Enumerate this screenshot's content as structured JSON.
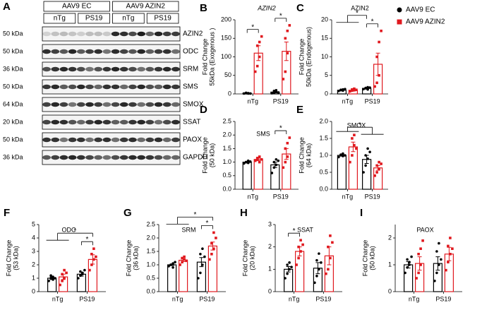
{
  "blot": {
    "letter": "A",
    "groups": [
      {
        "label": "AAV9 EC",
        "subgroups": [
          "nTg",
          "PS19"
        ]
      },
      {
        "label": "AAV9 AZIN2",
        "subgroups": [
          "nTg",
          "PS19"
        ]
      }
    ],
    "rows": [
      {
        "kda": "50 kDa",
        "protein": "AZIN2"
      },
      {
        "kda": "50 kDa",
        "protein": "ODC"
      },
      {
        "kda": "36 kDa",
        "protein": "SRM"
      },
      {
        "kda": "50 kDa",
        "protein": "SMS"
      },
      {
        "kda": "64 kDa",
        "protein": "SMOX"
      },
      {
        "kda": "20 kDa",
        "protein": "SSAT"
      },
      {
        "kda": "50 kDa",
        "protein": "PAOX"
      },
      {
        "kda": "36 kDa",
        "protein": "GAPDH"
      }
    ]
  },
  "legend": [
    {
      "name": "AAV9 EC",
      "color": "#000000",
      "marker": "circle"
    },
    {
      "name": "AAV9 AZIN2",
      "color": "#e0191f",
      "marker": "square"
    }
  ],
  "chart_data": [
    {
      "type": "bar",
      "letter": "B",
      "title": "AZIN2",
      "title_style": "italic",
      "ylabel": [
        "Fold Change",
        "55kDa (Exogenous )"
      ],
      "categories": [
        "nTg",
        "PS19"
      ],
      "ylim": [
        0,
        200
      ],
      "yticks": [
        0,
        50,
        100,
        150,
        200
      ],
      "series": [
        {
          "color": "#000000",
          "values": [
            2,
            5
          ],
          "errors": [
            1,
            2
          ],
          "points": [
            [
              1,
              2,
              1,
              3,
              2,
              1
            ],
            [
              2,
              8,
              5,
              3,
              10,
              4
            ]
          ]
        },
        {
          "color": "#e0191f",
          "values": [
            110,
            115
          ],
          "errors": [
            20,
            25
          ],
          "points": [
            [
              60,
              75,
              100,
              130,
              140,
              155
            ],
            [
              40,
              60,
              110,
              150,
              170,
              185
            ]
          ]
        }
      ],
      "significance": [
        {
          "label": "*",
          "a": [
            0,
            0
          ],
          "b": [
            0,
            1
          ]
        },
        {
          "label": "*",
          "a": [
            1,
            0
          ],
          "b": [
            1,
            1
          ]
        }
      ]
    },
    {
      "type": "bar",
      "letter": "C",
      "title": "AZIN2",
      "ylabel": [
        "Fold Change",
        "50kDa (Endogenous)"
      ],
      "categories": [
        "nTg",
        "PS19"
      ],
      "ylim": [
        0,
        20
      ],
      "yticks": [
        0,
        5,
        10,
        15,
        20
      ],
      "series": [
        {
          "color": "#000000",
          "values": [
            1,
            1.5
          ],
          "errors": [
            0.1,
            0.15
          ],
          "points": [
            [
              0.8,
              1,
              1.2,
              1.1,
              0.9,
              1.3
            ],
            [
              1.3,
              1.5,
              1.8,
              1.6,
              1.2,
              1.7
            ]
          ]
        },
        {
          "color": "#e0191f",
          "values": [
            1,
            8
          ],
          "errors": [
            0.15,
            3
          ],
          "points": [
            [
              0.7,
              1.2,
              1,
              0.9,
              1.4,
              1.1
            ],
            [
              2,
              3,
              5,
              10,
              14,
              17
            ]
          ]
        }
      ],
      "significance": [
        {
          "label": "*",
          "a": [
            1,
            0
          ],
          "b": [
            1,
            1
          ]
        },
        {
          "label": "*",
          "a": [
            0,
            null
          ],
          "b": [
            1,
            0
          ]
        }
      ]
    },
    {
      "type": "bar",
      "letter": "D",
      "title": "SMS",
      "ylabel": [
        "Fold Change",
        "(50 kDa)"
      ],
      "categories": [
        "nTg",
        "PS19"
      ],
      "ylim": [
        0,
        2.5
      ],
      "yticks": [
        {
          "value": 0,
          "label": "0.0"
        },
        0.5,
        {
          "value": 1,
          "label": "1.0"
        },
        1.5,
        {
          "value": 2,
          "label": "2.0"
        },
        2.5
      ],
      "series": [
        {
          "color": "#000000",
          "values": [
            1.0,
            0.9
          ],
          "errors": [
            0.03,
            0.1
          ],
          "points": [
            [
              0.95,
              1.0,
              1.05,
              1.0,
              0.97,
              1.02
            ],
            [
              0.6,
              0.8,
              0.9,
              1.0,
              1.1,
              1.05
            ]
          ]
        },
        {
          "color": "#e0191f",
          "values": [
            1.1,
            1.3
          ],
          "errors": [
            0.05,
            0.2
          ],
          "points": [
            [
              1.05,
              1.1,
              1.2,
              1.15,
              1.0,
              1.1
            ],
            [
              0.8,
              1.0,
              1.2,
              1.5,
              1.7,
              1.9
            ]
          ]
        }
      ],
      "significance": [
        {
          "label": "*",
          "a": [
            1,
            0
          ],
          "b": [
            1,
            1
          ]
        }
      ]
    },
    {
      "type": "bar",
      "letter": "E",
      "title": "SMOX",
      "ylabel": [
        "Fold Change",
        "(64 kDa)"
      ],
      "categories": [
        "nTg",
        "PS19"
      ],
      "ylim": [
        0,
        2
      ],
      "yticks": [
        {
          "value": 0,
          "label": "0.0"
        },
        0.5,
        {
          "value": 1,
          "label": "1.0"
        },
        1.5,
        {
          "value": 2,
          "label": "2.0"
        }
      ],
      "series": [
        {
          "color": "#000000",
          "values": [
            1.0,
            0.88
          ],
          "errors": [
            0.02,
            0.12
          ],
          "points": [
            [
              0.95,
              1.0,
              1.05,
              1.02,
              0.98,
              1.0
            ],
            [
              0.5,
              0.7,
              0.9,
              1.0,
              1.2,
              1.1
            ]
          ]
        },
        {
          "color": "#e0191f",
          "values": [
            1.25,
            0.63
          ],
          "errors": [
            0.14,
            0.07
          ],
          "points": [
            [
              0.8,
              1.0,
              1.3,
              1.5,
              1.6,
              1.2
            ],
            [
              0.4,
              0.5,
              0.6,
              0.7,
              0.8,
              0.75
            ]
          ]
        }
      ],
      "significance": [
        {
          "label": "*",
          "a": [
            0,
            null
          ],
          "b": [
            1,
            null
          ]
        }
      ]
    },
    {
      "type": "bar",
      "letter": "F",
      "title": "ODC",
      "ylabel": [
        "Fold Change",
        "(53 kDa)"
      ],
      "categories": [
        "nTg",
        "PS19"
      ],
      "ylim": [
        0,
        5
      ],
      "yticks": [
        0,
        1,
        2,
        3,
        4,
        5
      ],
      "series": [
        {
          "color": "#000000",
          "values": [
            1.0,
            1.3
          ],
          "errors": [
            0.1,
            0.15
          ],
          "points": [
            [
              0.8,
              1.0,
              1.1,
              1.2,
              0.9,
              1.0
            ],
            [
              1.0,
              1.2,
              1.4,
              1.5,
              1.3,
              1.6
            ]
          ]
        },
        {
          "color": "#e0191f",
          "values": [
            1.1,
            2.4
          ],
          "errors": [
            0.2,
            0.35
          ],
          "points": [
            [
              0.5,
              0.8,
              1.0,
              1.3,
              1.6,
              1.4
            ],
            [
              1.6,
              2.0,
              2.4,
              2.8,
              3.2,
              2.6
            ]
          ]
        }
      ],
      "significance": [
        {
          "label": "*",
          "a": [
            1,
            0
          ],
          "b": [
            1,
            1
          ]
        },
        {
          "label": "*",
          "a": [
            0,
            null
          ],
          "b": [
            1,
            1
          ]
        }
      ]
    },
    {
      "type": "bar",
      "letter": "G",
      "title": "SRM",
      "ylabel": [
        "Fold Change",
        "(36 kDa)"
      ],
      "categories": [
        "nTg",
        "PS19"
      ],
      "ylim": [
        0,
        2.5
      ],
      "yticks": [
        {
          "value": 0,
          "label": "0.0"
        },
        0.5,
        {
          "value": 1,
          "label": "1.0"
        },
        1.5,
        {
          "value": 2,
          "label": "2.0"
        },
        2.5
      ],
      "series": [
        {
          "color": "#000000",
          "values": [
            1.0,
            1.1
          ],
          "errors": [
            0.03,
            0.17
          ],
          "points": [
            [
              0.95,
              1.0,
              1.05,
              1.0,
              0.9,
              1.1
            ],
            [
              0.5,
              0.7,
              1.0,
              1.4,
              1.6,
              1.3
            ]
          ]
        },
        {
          "color": "#e0191f",
          "values": [
            1.17,
            1.7
          ],
          "errors": [
            0.05,
            0.15
          ],
          "points": [
            [
              1.0,
              1.1,
              1.2,
              1.25,
              1.3,
              1.15
            ],
            [
              1.2,
              1.4,
              1.6,
              1.8,
              2.2,
              2.0
            ]
          ]
        }
      ],
      "significance": [
        {
          "label": "*",
          "a": [
            1,
            0
          ],
          "b": [
            1,
            1
          ]
        },
        {
          "label": "*",
          "a": [
            0,
            null
          ],
          "b": [
            1,
            1
          ]
        }
      ]
    },
    {
      "type": "bar",
      "letter": "H",
      "title": "SSAT",
      "ylabel": [
        "Fold Change",
        "(20 kDa)"
      ],
      "categories": [
        "nTg",
        "PS19"
      ],
      "ylim": [
        0,
        3
      ],
      "yticks": [
        0,
        1,
        2,
        3
      ],
      "series": [
        {
          "color": "#000000",
          "values": [
            1.0,
            1.05
          ],
          "errors": [
            0.12,
            0.25
          ],
          "points": [
            [
              0.6,
              0.8,
              1.0,
              1.2,
              1.3,
              1.1
            ],
            [
              0.4,
              0.7,
              1.0,
              1.4,
              1.7,
              1.3
            ]
          ]
        },
        {
          "color": "#e0191f",
          "values": [
            1.8,
            1.6
          ],
          "errors": [
            0.2,
            0.4
          ],
          "points": [
            [
              1.2,
              1.5,
              1.8,
              2.0,
              2.3,
              2.1
            ],
            [
              0.8,
              1.0,
              1.5,
              2.0,
              2.5,
              2.2
            ]
          ]
        }
      ],
      "significance": [
        {
          "label": "*",
          "a": [
            0,
            0
          ],
          "b": [
            0,
            1
          ]
        }
      ]
    },
    {
      "type": "bar",
      "letter": "I",
      "title": "PAOX",
      "ylabel": [
        "Fold Change",
        "(50 kDa)"
      ],
      "categories": [
        "nTg",
        "PS19"
      ],
      "ylim": [
        0,
        2.5
      ],
      "yticks": [
        0,
        1,
        2
      ],
      "series": [
        {
          "color": "#000000",
          "values": [
            1.0,
            1.05
          ],
          "errors": [
            0.12,
            0.25
          ],
          "points": [
            [
              0.7,
              0.9,
              1.0,
              1.2,
              1.1,
              1.3
            ],
            [
              0.4,
              0.7,
              1.0,
              1.5,
              1.8,
              1.2
            ]
          ]
        },
        {
          "color": "#e0191f",
          "values": [
            1.05,
            1.4
          ],
          "errors": [
            0.25,
            0.25
          ],
          "points": [
            [
              0.5,
              0.7,
              1.0,
              1.4,
              1.6,
              1.9
            ],
            [
              0.8,
              1.1,
              1.4,
              1.7,
              2.0,
              1.6
            ]
          ]
        }
      ],
      "significance": []
    }
  ]
}
